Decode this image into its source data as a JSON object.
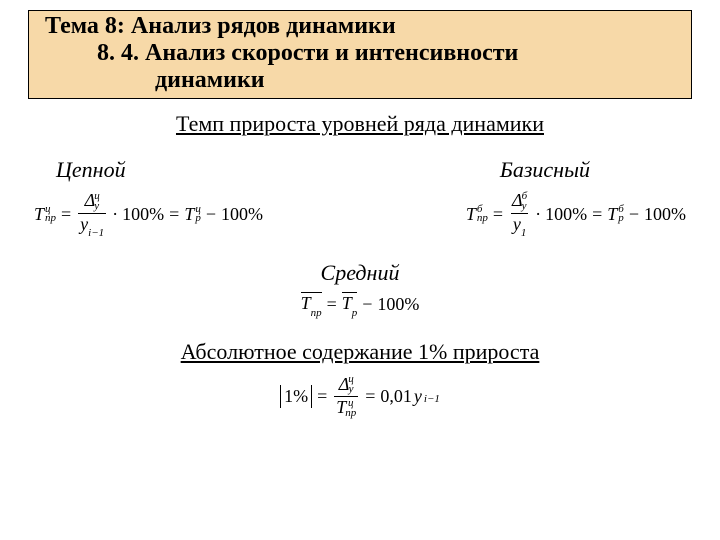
{
  "header": {
    "line1": "Тема 8: Анализ рядов динамики",
    "line2": "8. 4. Анализ скорости и интенсивности",
    "line3": "динамики"
  },
  "subtitle": "Темп прироста уровней ряда динамики",
  "cols": {
    "left": "Цепной",
    "right": "Базисный"
  },
  "mid_label": "Средний",
  "section2": "Абсолютное содержание 1% прироста",
  "sym": {
    "T": "T",
    "Delta": "Δ",
    "y": "y",
    "np": "пр",
    "p": "р",
    "ch": "ц",
    "b": "б",
    "im1": "i−1",
    "one": "1",
    "hundred": "100%",
    "eq": "=",
    "minus": "−",
    "dot": "·",
    "comma001": "0,01",
    "onepct": "1%"
  },
  "style": {
    "header_bg": "#f7d9a8",
    "border": "#000000",
    "text": "#000000"
  }
}
